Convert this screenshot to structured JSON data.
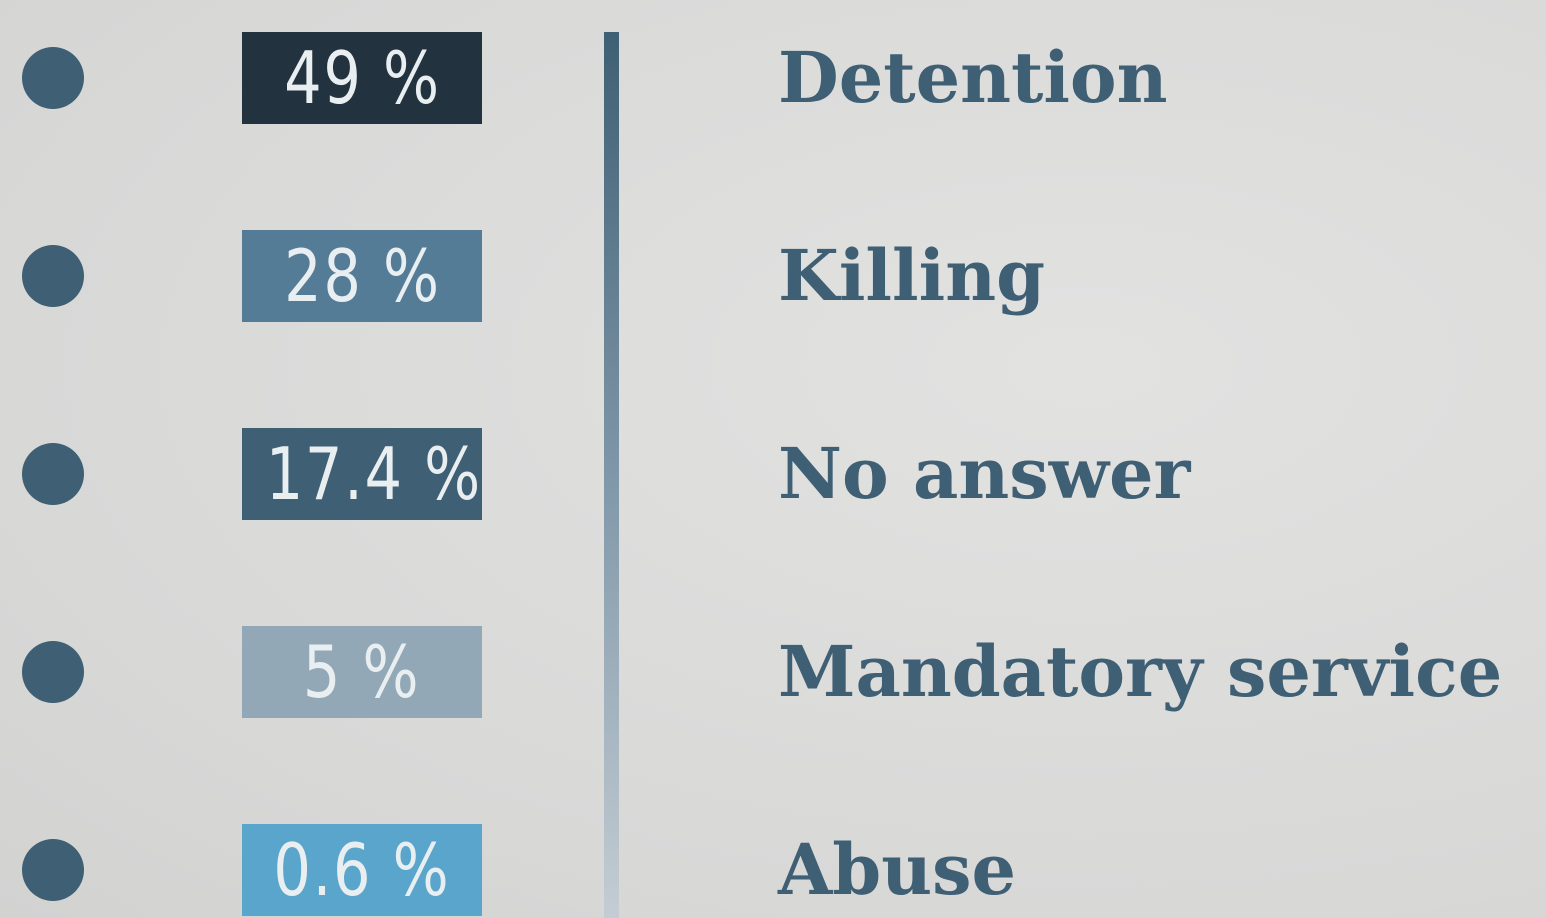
{
  "items": [
    {
      "percent": "49 %",
      "label": "Detention",
      "color": "#22333f"
    },
    {
      "percent": "28 %",
      "label": "Killing",
      "color": "#557c97"
    },
    {
      "percent": "17.4 %",
      "label": "No answer",
      "color": "#3f5f74"
    },
    {
      "percent": "5 %",
      "label": "Mandatory service",
      "color": "#93a8b6"
    },
    {
      "percent": "0.6 %",
      "label": "Abuse",
      "color": "#5aa5cc"
    }
  ]
}
